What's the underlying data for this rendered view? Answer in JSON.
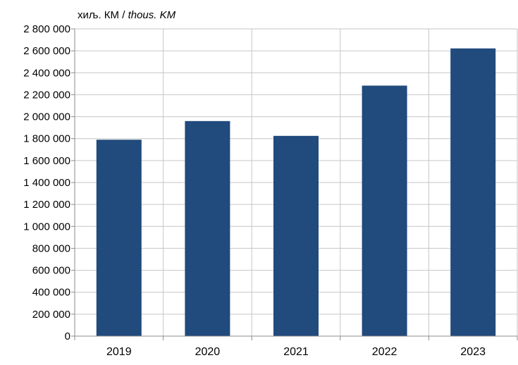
{
  "chart_data": {
    "type": "bar",
    "unit_label": "хиљ. КМ",
    "unit_separator": " / ",
    "unit_label_en": "thous. KM",
    "categories": [
      "2019",
      "2020",
      "2021",
      "2022",
      "2023"
    ],
    "values": [
      1790000,
      1960000,
      1825000,
      2283000,
      2622000
    ],
    "ylim": [
      0,
      2800000
    ],
    "y_ticks": [
      0,
      200000,
      400000,
      600000,
      800000,
      1000000,
      1200000,
      1400000,
      1600000,
      1800000,
      2000000,
      2200000,
      2400000,
      2600000,
      2800000
    ],
    "y_tick_labels": [
      "0",
      "200 000",
      "400 000",
      "600 000",
      "800 000",
      "1 000 000",
      "1 200 000",
      "1 400 000",
      "1 600 000",
      "1 800 000",
      "2 000 000",
      "2 200 000",
      "2 400 000",
      "2 600 000",
      "2 800 000"
    ],
    "grid": true,
    "colors": {
      "bar": "#214a7d",
      "grid": "#c6c6c6",
      "axis": "#8c8c8c"
    }
  }
}
